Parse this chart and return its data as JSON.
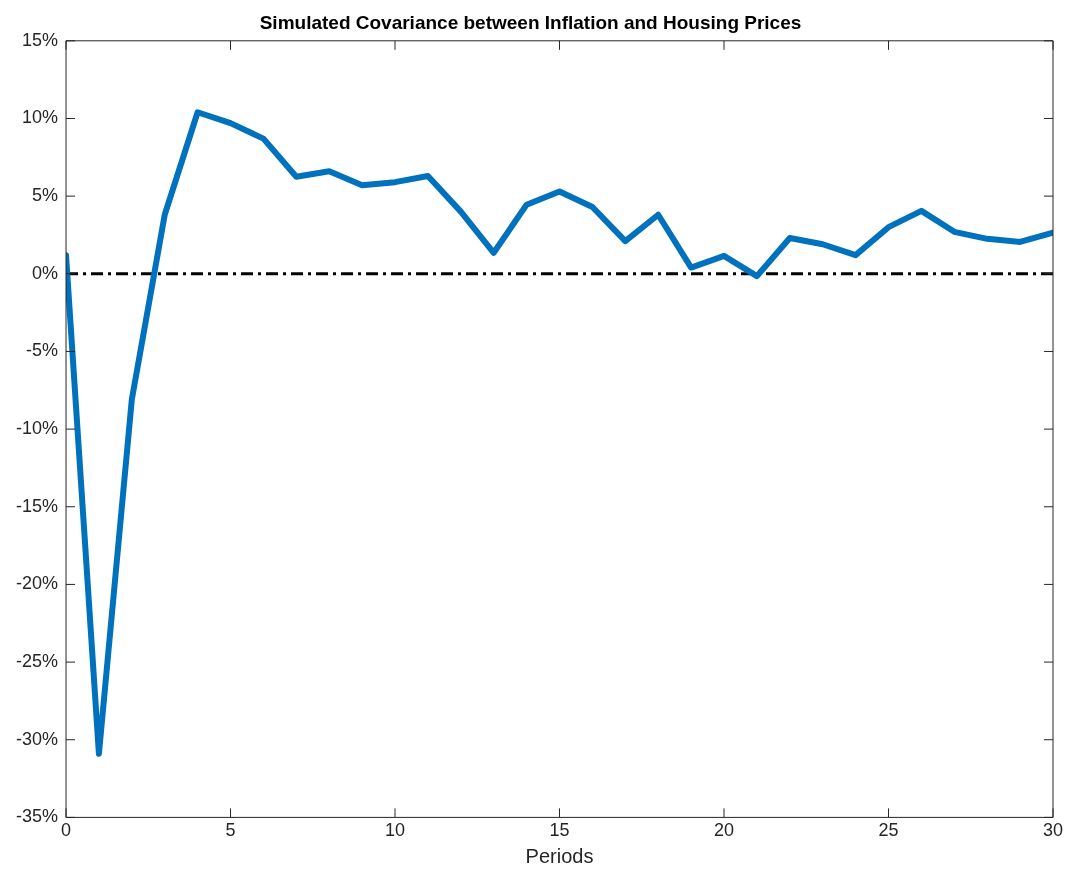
{
  "chart_data": {
    "type": "line",
    "title": "Simulated Covariance between Inflation and Housing Prices",
    "xlabel": "Periods",
    "x": [
      0,
      1,
      2,
      3,
      4,
      5,
      6,
      7,
      8,
      9,
      10,
      11,
      12,
      13,
      14,
      15,
      16,
      17,
      18,
      19,
      20,
      21,
      22,
      23,
      24,
      25,
      26,
      27,
      28,
      29,
      30
    ],
    "series": [
      {
        "color": "#0072bd",
        "values": [
          1.2,
          -30.9,
          -8.1,
          3.8,
          10.4,
          9.7,
          8.7,
          6.25,
          6.6,
          5.7,
          5.9,
          6.3,
          4.0,
          1.35,
          4.45,
          5.3,
          4.3,
          2.1,
          3.8,
          0.4,
          1.15,
          -0.15,
          2.3,
          1.9,
          1.2,
          3.0,
          4.05,
          2.7,
          2.25,
          2.05,
          2.65
        ]
      }
    ],
    "xlim": [
      0,
      30
    ],
    "xticks": [
      0,
      5,
      10,
      15,
      20,
      25,
      30
    ],
    "ylim": [
      -35,
      15
    ],
    "yticks": [
      {
        "value": -35,
        "label": "-35%"
      },
      {
        "value": -30,
        "label": "-30%"
      },
      {
        "value": -25,
        "label": "-25%"
      },
      {
        "value": -20,
        "label": "-20%"
      },
      {
        "value": -15,
        "label": "-15%"
      },
      {
        "value": -10,
        "label": "-10%"
      },
      {
        "value": -5,
        "label": "-5%"
      },
      {
        "value": 0,
        "label": "0%"
      },
      {
        "value": 5,
        "label": "5%"
      },
      {
        "value": 10,
        "label": "10%"
      },
      {
        "value": 15,
        "label": "15%"
      }
    ],
    "ref_lines": [
      {
        "axis": "y",
        "value": 0,
        "color": "#000000",
        "line_style": "dashdot"
      }
    ],
    "grid": false,
    "legend": false,
    "marker": "none",
    "line_style": "solid"
  }
}
